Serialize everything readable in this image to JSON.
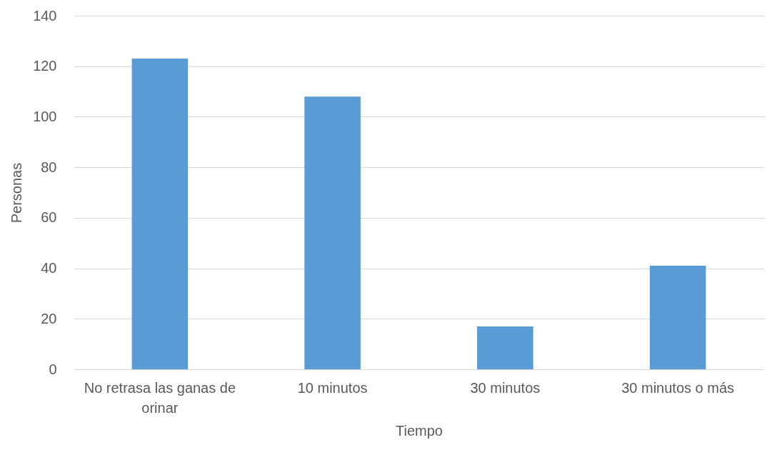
{
  "chart_data": {
    "type": "bar",
    "xlabel": "Tiempo",
    "ylabel": "Personas",
    "categories": [
      "No retrasa las ganas de orinar",
      "10 minutos",
      "30 minutos",
      "30 minutos o más"
    ],
    "values": [
      123,
      108,
      17,
      41
    ],
    "color": "#5b9bd5",
    "ylim": [
      0,
      140
    ],
    "yticks": [
      0,
      20,
      40,
      60,
      80,
      100,
      120,
      140
    ],
    "grid": "y"
  }
}
